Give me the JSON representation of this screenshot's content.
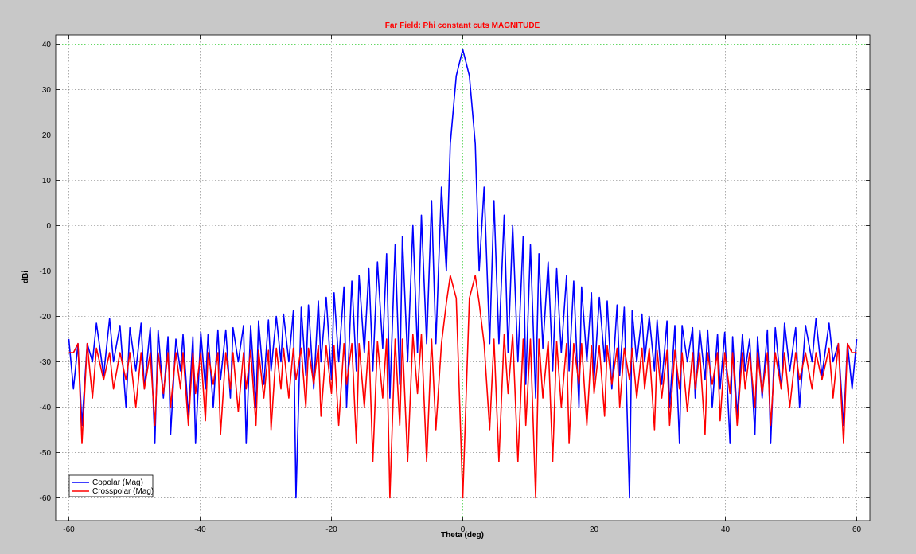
{
  "colors": {
    "figure_bg": "#c8c8c8",
    "plot_bg": "#ffffff",
    "grid": "#8a8a8a",
    "grid_zero": "#33cc33",
    "title": "#ff0000",
    "copolar": "#0000ff",
    "crosspolar": "#ff0000"
  },
  "chart_data": {
    "type": "line",
    "title": "Far Field: Phi constant cuts MAGNITUDE",
    "xlabel": "Theta (deg)",
    "ylabel": "dBi",
    "xlim": [
      -62,
      62
    ],
    "ylim": [
      -65,
      42
    ],
    "xticks": [
      -60,
      -40,
      -20,
      0,
      20,
      40,
      60
    ],
    "yticks": [
      40,
      30,
      20,
      10,
      0,
      -10,
      -20,
      -30,
      -40,
      -50,
      -60
    ],
    "grid": true,
    "legend_position": "bottom-left",
    "series": [
      {
        "name": "Copolar (Mag)",
        "color": "#0000ff",
        "x": [
          0,
          1,
          1.9,
          2.5,
          3.25,
          4.1,
          4.75,
          5.5,
          6.3,
          6.9,
          7.6,
          8.4,
          9.2,
          9.6,
          10.3,
          11.1,
          11.6,
          12.2,
          13.0,
          13.7,
          14.3,
          15.0,
          15.8,
          16.2,
          16.9,
          17.7,
          18.1,
          18.9,
          19.6,
          20.0,
          20.8,
          21.6,
          22.0,
          22.7,
          23.5,
          23.9,
          24.6,
          25.4,
          25.8,
          26.5,
          27.3,
          27.7,
          28.4,
          29.2,
          29.6,
          30.3,
          31.1,
          31.5,
          32.3,
          33.0,
          33.4,
          34.2,
          35.0,
          35.4,
          36.1,
          36.9,
          37.3,
          38.0,
          38.8,
          39.2,
          39.9,
          40.7,
          41.1,
          41.8,
          42.6,
          43.0,
          43.7,
          44.5,
          44.9,
          45.6,
          46.4,
          46.9,
          47.6,
          48.5,
          49.0,
          49.8,
          50.7,
          51.3,
          52.2,
          53.2,
          53.8,
          54.7,
          55.8,
          56.4,
          57.2,
          58.0,
          58.6,
          59.3,
          60.0
        ],
        "y": [
          38.8,
          33,
          18,
          -10,
          8.5,
          -26,
          5.5,
          -26,
          2.3,
          -28,
          0,
          -30,
          -2.4,
          -35,
          -4.2,
          -38,
          -6.2,
          -27,
          -8,
          -32,
          -9.5,
          -28,
          -11,
          -32,
          -12.2,
          -40,
          -13.5,
          -30,
          -14.8,
          -34,
          -15.8,
          -30,
          -16.6,
          -36,
          -17.5,
          -33,
          -18,
          -60,
          -18.8,
          -30,
          -19.5,
          -30,
          -20,
          -32,
          -20.8,
          -35,
          -21,
          -40,
          -22,
          -48,
          -22,
          -30,
          -22.5,
          -38,
          -23,
          -34,
          -23,
          -40,
          -24,
          -36,
          -23.5,
          -48,
          -24.5,
          -42,
          -24,
          -32,
          -25,
          -46,
          -24.5,
          -38,
          -23,
          -48,
          -22.5,
          -36,
          -21.5,
          -32,
          -22.5,
          -40,
          -22,
          -30,
          -20.5,
          -33,
          -21.5,
          -30,
          -26,
          -44,
          -26,
          -36,
          -25
        ]
      },
      {
        "name": "Crosspolar (Mag)",
        "color": "#ff0000",
        "x": [
          0,
          1,
          1.9,
          2.5,
          3.25,
          4.1,
          4.75,
          5.5,
          6.3,
          6.9,
          7.6,
          8.4,
          9.2,
          9.6,
          10.3,
          11.1,
          11.6,
          12.2,
          13.0,
          13.7,
          14.3,
          15.0,
          15.8,
          16.2,
          16.9,
          17.7,
          18.1,
          18.9,
          19.6,
          20.0,
          20.8,
          21.6,
          22.0,
          22.7,
          23.5,
          23.9,
          24.6,
          25.4,
          25.8,
          26.5,
          27.3,
          27.7,
          28.4,
          29.2,
          29.6,
          30.3,
          31.1,
          31.5,
          32.3,
          33.0,
          33.4,
          34.2,
          35.0,
          35.4,
          36.1,
          36.9,
          37.3,
          38.0,
          38.8,
          39.2,
          39.9,
          40.7,
          41.1,
          41.8,
          42.6,
          43.0,
          43.7,
          44.5,
          44.9,
          45.6,
          46.4,
          46.9,
          47.6,
          48.5,
          49.0,
          49.8,
          50.7,
          51.3,
          52.2,
          53.2,
          53.8,
          54.7,
          55.8,
          56.4,
          57.2,
          58.0,
          58.6,
          59.3,
          60.0
        ],
        "y": [
          -60,
          -16,
          -11,
          -17,
          -26,
          -45,
          -25,
          -52,
          -24,
          -37,
          -24,
          -52,
          -25,
          -44,
          -25,
          -60,
          -25,
          -38,
          -25.5,
          -52,
          -25.5,
          -40,
          -26,
          -48,
          -26,
          -35,
          -26,
          -44,
          -26.5,
          -37,
          -26.5,
          -42,
          -26.5,
          -35,
          -27,
          -40,
          -27,
          -34,
          -27,
          -38,
          -27,
          -36,
          -27,
          -45,
          -27.5,
          -38,
          -27.5,
          -44,
          -27.5,
          -36,
          -28,
          -41,
          -28,
          -36,
          -28,
          -46,
          -28,
          -35,
          -28,
          -43,
          -28,
          -37,
          -28,
          -44,
          -28,
          -36,
          -28,
          -40,
          -28,
          -37,
          -28,
          -44,
          -28,
          -36,
          -28,
          -40,
          -28,
          -34,
          -28,
          -36,
          -28,
          -34,
          -27,
          -38,
          -26,
          -48,
          -26,
          -28,
          -28
        ]
      }
    ]
  }
}
